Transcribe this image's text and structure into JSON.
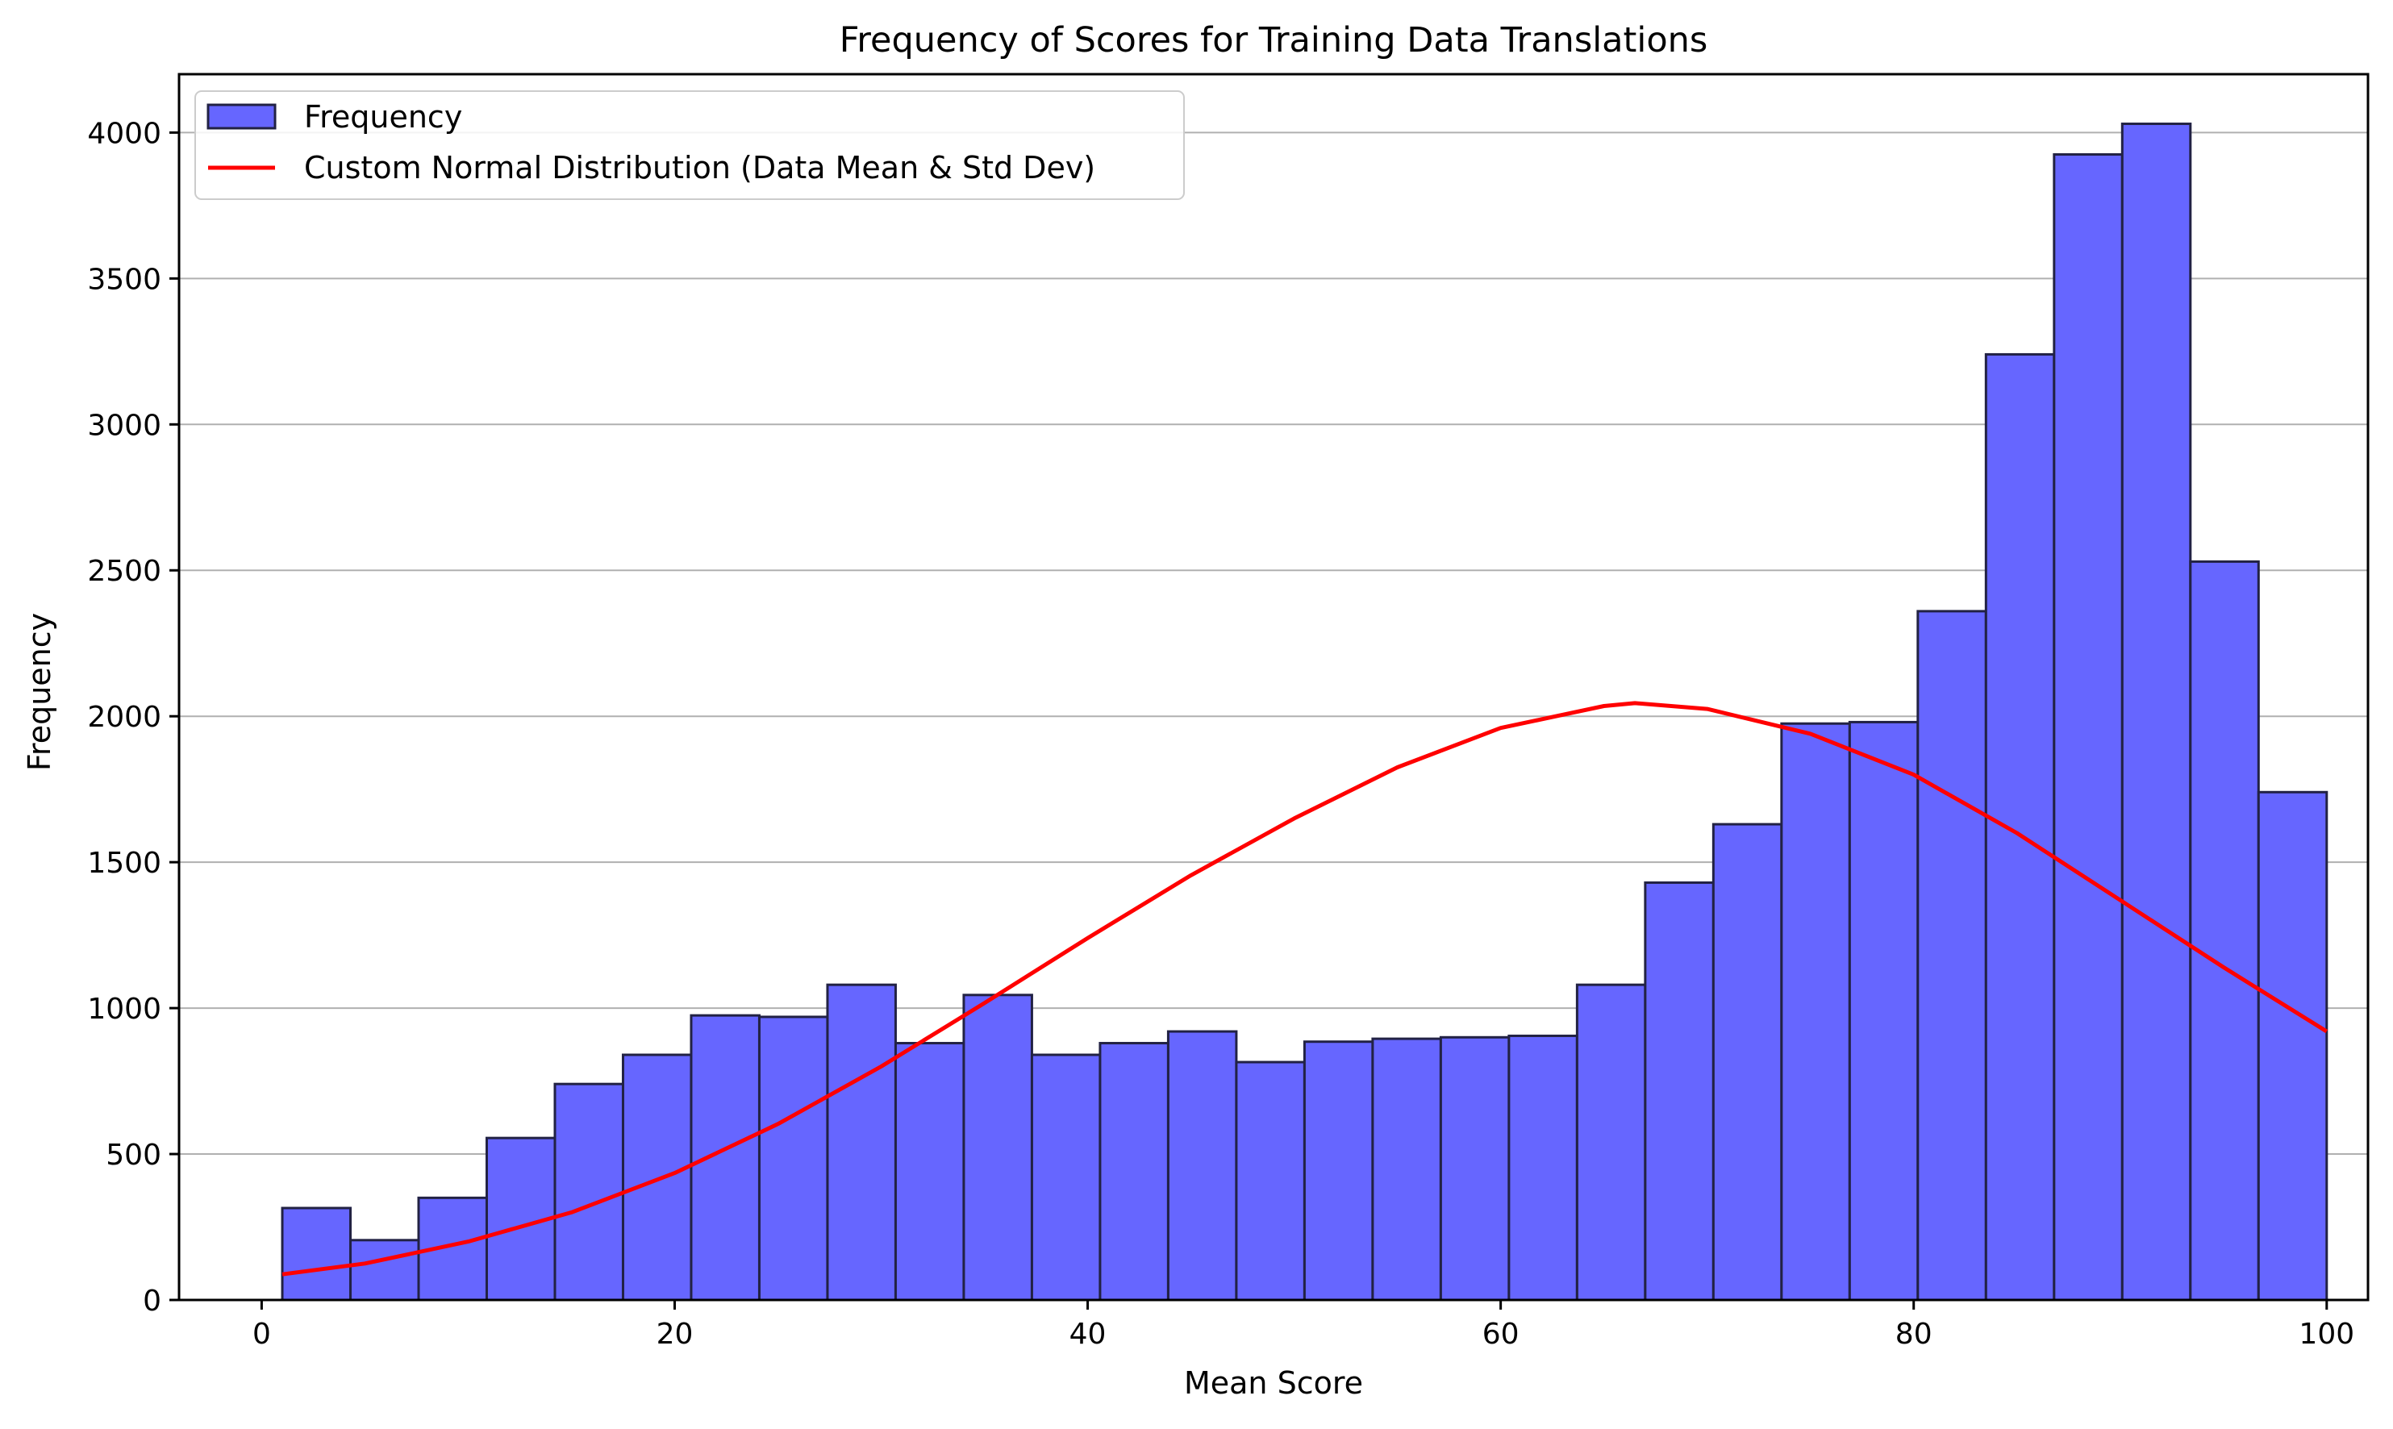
{
  "chart_data": {
    "type": "bar",
    "title": "Frequency of Scores for Training Data Translations",
    "xlabel": "Mean Score",
    "ylabel": "Frequency",
    "xlim": [
      -4,
      102
    ],
    "ylim": [
      0,
      4200
    ],
    "x_ticks": [
      0,
      20,
      40,
      60,
      80,
      100
    ],
    "y_ticks": [
      0,
      500,
      1000,
      1500,
      2000,
      2500,
      3000,
      3500,
      4000
    ],
    "grid": "y-major",
    "legend_position": "top-left",
    "bin_edges": [
      1,
      4.3,
      7.6,
      10.9,
      14.2,
      17.5,
      20.8,
      24.1,
      27.4,
      30.7,
      34,
      37.3,
      40.6,
      43.9,
      47.2,
      50.5,
      53.8,
      57.1,
      60.4,
      63.7,
      67,
      70.3,
      73.6,
      76.9,
      80.2,
      83.5,
      86.8,
      90.1,
      93.4,
      96.7,
      100
    ],
    "series": [
      {
        "name": "Frequency",
        "kind": "histogram",
        "color": "#6666ff",
        "edge_color": "#222244",
        "values": [
          315,
          205,
          350,
          555,
          740,
          840,
          975,
          970,
          1080,
          880,
          1045,
          840,
          880,
          920,
          815,
          885,
          895,
          900,
          905,
          1080,
          1430,
          1630,
          1975,
          1980,
          2360,
          3240,
          3925,
          4030,
          2530,
          1740
        ]
      },
      {
        "name": "Custom Normal Distribution (Data Mean & Std Dev)",
        "kind": "line",
        "color": "#ff0000",
        "x": [
          1,
          5,
          10,
          15,
          20,
          25,
          30,
          35,
          40,
          45,
          50,
          55,
          60,
          65,
          66.5,
          70,
          75,
          80,
          85,
          90,
          95,
          100
        ],
        "y": [
          88,
          125,
          200,
          300,
          435,
          603,
          800,
          1017,
          1240,
          1455,
          1650,
          1825,
          1960,
          2035,
          2045,
          2025,
          1940,
          1800,
          1600,
          1370,
          1140,
          920
        ]
      }
    ]
  }
}
